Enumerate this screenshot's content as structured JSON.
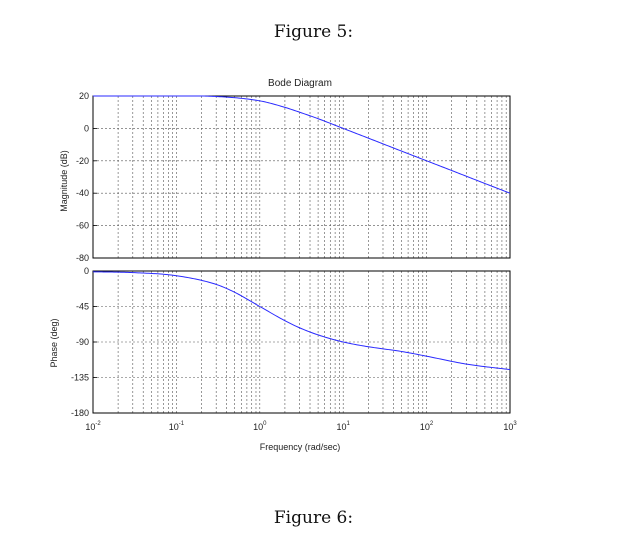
{
  "captions": {
    "top": "Figure 5:",
    "bottom": "Figure 6:"
  },
  "chart_data": [
    {
      "type": "line",
      "title": "Bode Diagram",
      "xlabel": "Frequency (rad/sec)",
      "ylabel": "Magnitude (dB)",
      "xscale": "log",
      "xlim": [
        0.01,
        1000
      ],
      "ylim": [
        -80,
        20
      ],
      "xticks": [
        0.01,
        0.1,
        1,
        10,
        100,
        1000
      ],
      "xtick_exponents": [
        "-2",
        "-1",
        "0",
        "1",
        "2",
        "3"
      ],
      "yticks": [
        20,
        0,
        -20,
        -40,
        -60,
        -80
      ],
      "grid": true,
      "color": "#2a2aff",
      "x": [
        0.01,
        0.1,
        0.3,
        1,
        2,
        3,
        5,
        10,
        20,
        50,
        100,
        200,
        500,
        1000
      ],
      "y": [
        20,
        20,
        19.7,
        17,
        13,
        10,
        6,
        0,
        -6,
        -14,
        -20,
        -26,
        -34,
        -40
      ]
    },
    {
      "type": "line",
      "title": "",
      "xlabel": "Frequency (rad/sec)",
      "ylabel": "Phase (deg)",
      "xscale": "log",
      "xlim": [
        0.01,
        1000
      ],
      "ylim": [
        -180,
        0
      ],
      "xticks": [
        0.01,
        0.1,
        1,
        10,
        100,
        1000
      ],
      "xtick_exponents": [
        "-2",
        "-1",
        "0",
        "1",
        "2",
        "3"
      ],
      "yticks": [
        0,
        -45,
        -90,
        -135,
        -180
      ],
      "grid": true,
      "color": "#2a2aff",
      "x": [
        0.01,
        0.03,
        0.1,
        0.3,
        0.5,
        1,
        2,
        3,
        5,
        10,
        20,
        50,
        100,
        300,
        1000
      ],
      "y": [
        -1,
        -2,
        -6,
        -17,
        -27,
        -45,
        -63,
        -72,
        -81,
        -90,
        -96,
        -102,
        -108,
        -118,
        -125
      ]
    }
  ]
}
